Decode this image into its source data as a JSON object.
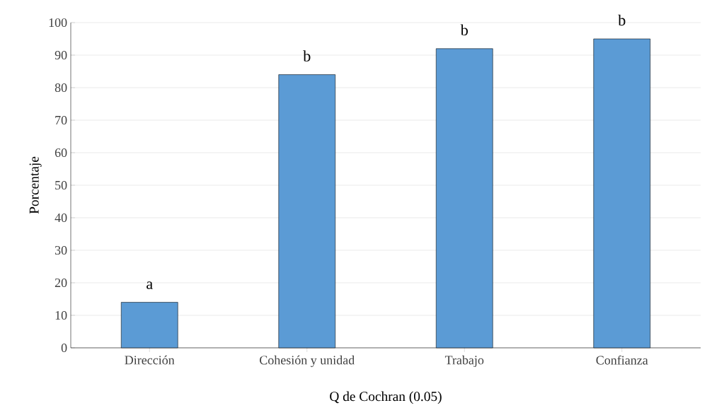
{
  "chart_data": {
    "type": "bar",
    "xlabel": "Q de Cochran (0.05)",
    "ylabel": "Porcentaje",
    "categories": [
      "Dirección",
      "Cohesión y unidad",
      "Trabajo",
      "Confianza"
    ],
    "values": [
      14,
      84,
      92,
      95
    ],
    "color": "#5b9bd5",
    "ylim": [
      0,
      100
    ],
    "yticks": [
      0,
      10,
      20,
      30,
      40,
      50,
      60,
      70,
      80,
      90,
      100
    ],
    "grid": "y",
    "annotations": [
      {
        "text": "a",
        "x": "Dirección",
        "y": 14
      },
      {
        "text": "b",
        "x": "Cohesión y unidad",
        "y": 84
      },
      {
        "text": "b",
        "x": "Trabajo",
        "y": 92
      },
      {
        "text": "b",
        "x": "Confianza",
        "y": 95
      }
    ]
  }
}
